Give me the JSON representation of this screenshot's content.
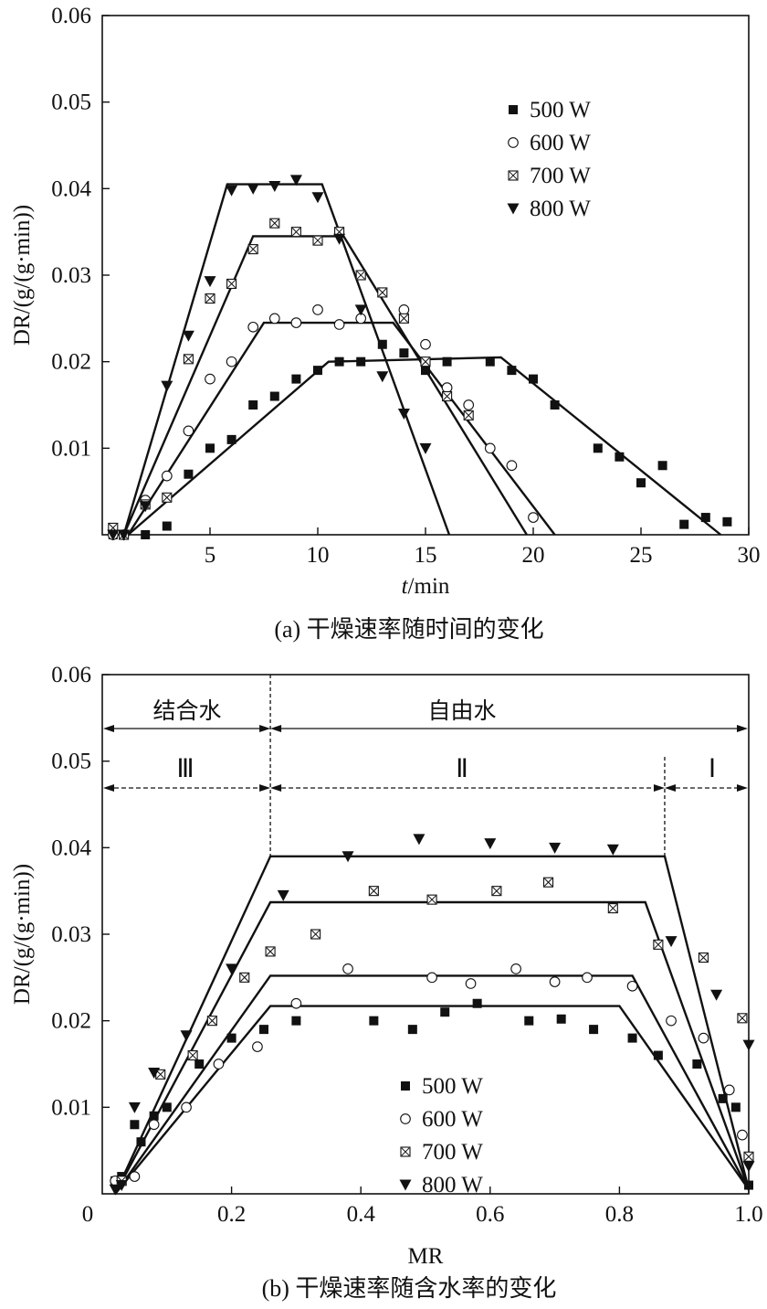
{
  "chart_data": [
    {
      "type": "scatter",
      "panel": "a",
      "caption": "(a) 干燥速率随时间的变化",
      "xlabel_italic": "t",
      "xlabel_unit": "/min",
      "ylabel": "DR/(g/(g·min))",
      "xlim": [
        0,
        30
      ],
      "ylim": [
        0,
        0.06
      ],
      "xticks": [
        5,
        10,
        15,
        20,
        25,
        30
      ],
      "yticks": [
        0.01,
        0.02,
        0.03,
        0.04,
        0.05,
        0.06
      ],
      "ytick_labels": [
        "0.01",
        "0.02",
        "0.03",
        "0.04",
        "0.05",
        "0.06"
      ],
      "legend_position": "top-right",
      "series": [
        {
          "name": "500 W",
          "marker": "filled-square",
          "points": [
            [
              0.5,
              0
            ],
            [
              1,
              0
            ],
            [
              2,
              0
            ],
            [
              3,
              0.001
            ],
            [
              4,
              0.007
            ],
            [
              5,
              0.01
            ],
            [
              6,
              0.011
            ],
            [
              7,
              0.015
            ],
            [
              8,
              0.016
            ],
            [
              9,
              0.018
            ],
            [
              10,
              0.019
            ],
            [
              11,
              0.02
            ],
            [
              12,
              0.02
            ],
            [
              13,
              0.022
            ],
            [
              14,
              0.021
            ],
            [
              15,
              0.019
            ],
            [
              16,
              0.02
            ],
            [
              18,
              0.02
            ],
            [
              19,
              0.019
            ],
            [
              20,
              0.018
            ],
            [
              21,
              0.015
            ],
            [
              23,
              0.01
            ],
            [
              24,
              0.009
            ],
            [
              25,
              0.006
            ],
            [
              26,
              0.008
            ],
            [
              27,
              0.0012
            ],
            [
              28,
              0.002
            ],
            [
              29,
              0.0015
            ]
          ],
          "fit": [
            [
              1.2,
              0
            ],
            [
              10.5,
              0.02
            ],
            [
              18.5,
              0.0205
            ],
            [
              28.7,
              0
            ]
          ]
        },
        {
          "name": "600 W",
          "marker": "open-circle",
          "points": [
            [
              0.5,
              0
            ],
            [
              1,
              0
            ],
            [
              2,
              0.004
            ],
            [
              3,
              0.0068
            ],
            [
              4,
              0.012
            ],
            [
              5,
              0.018
            ],
            [
              6,
              0.02
            ],
            [
              7,
              0.024
            ],
            [
              8,
              0.025
            ],
            [
              9,
              0.0245
            ],
            [
              10,
              0.026
            ],
            [
              11,
              0.0243
            ],
            [
              12,
              0.025
            ],
            [
              14,
              0.026
            ],
            [
              15,
              0.022
            ],
            [
              16,
              0.017
            ],
            [
              17,
              0.015
            ],
            [
              18,
              0.01
            ],
            [
              19,
              0.008
            ],
            [
              20,
              0.002
            ]
          ],
          "fit": [
            [
              1.2,
              0
            ],
            [
              7.5,
              0.0245
            ],
            [
              13.5,
              0.0245
            ],
            [
              21.0,
              0
            ]
          ]
        },
        {
          "name": "700 W",
          "marker": "boxed-x",
          "points": [
            [
              0.5,
              0.0008
            ],
            [
              1,
              0
            ],
            [
              2,
              0.0035
            ],
            [
              3,
              0.0043
            ],
            [
              4,
              0.0203
            ],
            [
              5,
              0.0273
            ],
            [
              6,
              0.029
            ],
            [
              7,
              0.033
            ],
            [
              8,
              0.036
            ],
            [
              9,
              0.035
            ],
            [
              10,
              0.034
            ],
            [
              11,
              0.035
            ],
            [
              12,
              0.03
            ],
            [
              13,
              0.028
            ],
            [
              14,
              0.025
            ],
            [
              15,
              0.02
            ],
            [
              16,
              0.016
            ],
            [
              17,
              0.0138
            ]
          ],
          "fit": [
            [
              1.0,
              0
            ],
            [
              7.0,
              0.0345
            ],
            [
              11.2,
              0.0345
            ],
            [
              19.7,
              0
            ]
          ]
        },
        {
          "name": "800 W",
          "marker": "filled-down-triangle",
          "points": [
            [
              0.5,
              0
            ],
            [
              1,
              0
            ],
            [
              2,
              0.0033
            ],
            [
              3,
              0.0172
            ],
            [
              4,
              0.023
            ],
            [
              5,
              0.0293
            ],
            [
              6,
              0.0398
            ],
            [
              7,
              0.04
            ],
            [
              8,
              0.0403
            ],
            [
              9,
              0.041
            ],
            [
              10,
              0.039
            ],
            [
              11,
              0.0342
            ],
            [
              12,
              0.026
            ],
            [
              13,
              0.0183
            ],
            [
              14,
              0.014
            ],
            [
              15,
              0.01
            ]
          ],
          "fit": [
            [
              1.0,
              0
            ],
            [
              5.8,
              0.0405
            ],
            [
              10.2,
              0.0405
            ],
            [
              16.1,
              0
            ]
          ]
        }
      ]
    },
    {
      "type": "scatter",
      "panel": "b",
      "caption": "(b) 干燥速率随含水率的变化",
      "xlabel": "MR",
      "ylabel": "DR/(g/(g·min))",
      "xlim": [
        0,
        1.0
      ],
      "ylim": [
        0,
        0.06
      ],
      "x_origin_label": "0",
      "xticks": [
        0.2,
        0.4,
        0.6,
        0.8,
        1.0
      ],
      "xtick_labels": [
        "0.2",
        "0.4",
        "0.6",
        "0.8",
        "1.0"
      ],
      "yticks": [
        0.01,
        0.02,
        0.03,
        0.04,
        0.05,
        0.06
      ],
      "ytick_labels": [
        "0.01",
        "0.02",
        "0.03",
        "0.04",
        "0.05",
        "0.06"
      ],
      "legend_position": "bottom-center",
      "regions": {
        "bound_water": "结合水",
        "free_water": "自由水",
        "zone_3": "Ⅲ",
        "zone_2": "Ⅱ",
        "zone_1": "Ⅰ",
        "divider_1": 0.26,
        "divider_2": 0.87
      },
      "series": [
        {
          "name": "500 W",
          "marker": "filled-square",
          "points": [
            [
              0.02,
              0.0015
            ],
            [
              0.03,
              0.002
            ],
            [
              0.05,
              0.008
            ],
            [
              0.06,
              0.006
            ],
            [
              0.08,
              0.009
            ],
            [
              0.1,
              0.01
            ],
            [
              0.15,
              0.015
            ],
            [
              0.2,
              0.018
            ],
            [
              0.25,
              0.019
            ],
            [
              0.3,
              0.02
            ],
            [
              0.42,
              0.02
            ],
            [
              0.48,
              0.019
            ],
            [
              0.53,
              0.021
            ],
            [
              0.58,
              0.022
            ],
            [
              0.66,
              0.02
            ],
            [
              0.71,
              0.0202
            ],
            [
              0.76,
              0.019
            ],
            [
              0.82,
              0.018
            ],
            [
              0.86,
              0.016
            ],
            [
              0.92,
              0.015
            ],
            [
              0.96,
              0.011
            ],
            [
              0.98,
              0.01
            ],
            [
              1.0,
              0.001
            ]
          ],
          "fit": [
            [
              0.02,
              0
            ],
            [
              0.26,
              0.0217
            ],
            [
              0.8,
              0.0217
            ],
            [
              1.0,
              0.0005
            ]
          ]
        },
        {
          "name": "600 W",
          "marker": "open-circle",
          "points": [
            [
              0.02,
              0.0015
            ],
            [
              0.05,
              0.002
            ],
            [
              0.08,
              0.008
            ],
            [
              0.13,
              0.01
            ],
            [
              0.18,
              0.015
            ],
            [
              0.24,
              0.017
            ],
            [
              0.3,
              0.022
            ],
            [
              0.38,
              0.026
            ],
            [
              0.51,
              0.025
            ],
            [
              0.57,
              0.0243
            ],
            [
              0.64,
              0.026
            ],
            [
              0.7,
              0.0245
            ],
            [
              0.75,
              0.025
            ],
            [
              0.82,
              0.024
            ],
            [
              0.88,
              0.02
            ],
            [
              0.93,
              0.018
            ],
            [
              0.97,
              0.012
            ],
            [
              0.99,
              0.0068
            ]
          ],
          "fit": [
            [
              0.02,
              0
            ],
            [
              0.26,
              0.0252
            ],
            [
              0.82,
              0.0252
            ],
            [
              1.0,
              0.0005
            ]
          ]
        },
        {
          "name": "700 W",
          "marker": "boxed-x",
          "points": [
            [
              0.03,
              0.0015
            ],
            [
              0.09,
              0.0138
            ],
            [
              0.14,
              0.016
            ],
            [
              0.17,
              0.02
            ],
            [
              0.22,
              0.025
            ],
            [
              0.26,
              0.028
            ],
            [
              0.33,
              0.03
            ],
            [
              0.42,
              0.035
            ],
            [
              0.51,
              0.034
            ],
            [
              0.61,
              0.035
            ],
            [
              0.69,
              0.036
            ],
            [
              0.79,
              0.033
            ],
            [
              0.86,
              0.0288
            ],
            [
              0.93,
              0.0273
            ],
            [
              0.99,
              0.0203
            ],
            [
              1.0,
              0.0043
            ]
          ],
          "fit": [
            [
              0.02,
              0
            ],
            [
              0.26,
              0.0337
            ],
            [
              0.84,
              0.0337
            ],
            [
              1.0,
              0.0005
            ]
          ]
        },
        {
          "name": "800 W",
          "marker": "filled-down-triangle",
          "points": [
            [
              0.02,
              0.0005
            ],
            [
              0.03,
              0.001
            ],
            [
              0.05,
              0.01
            ],
            [
              0.08,
              0.014
            ],
            [
              0.13,
              0.0183
            ],
            [
              0.2,
              0.026
            ],
            [
              0.28,
              0.0345
            ],
            [
              0.38,
              0.039
            ],
            [
              0.49,
              0.041
            ],
            [
              0.6,
              0.0405
            ],
            [
              0.7,
              0.04
            ],
            [
              0.79,
              0.0398
            ],
            [
              0.88,
              0.0292
            ],
            [
              0.95,
              0.023
            ],
            [
              1.0,
              0.0172
            ],
            [
              1.0,
              0.0032
            ]
          ],
          "fit": [
            [
              0.02,
              0
            ],
            [
              0.26,
              0.039
            ],
            [
              0.87,
              0.039
            ],
            [
              1.0,
              0.0005
            ]
          ]
        }
      ]
    }
  ]
}
